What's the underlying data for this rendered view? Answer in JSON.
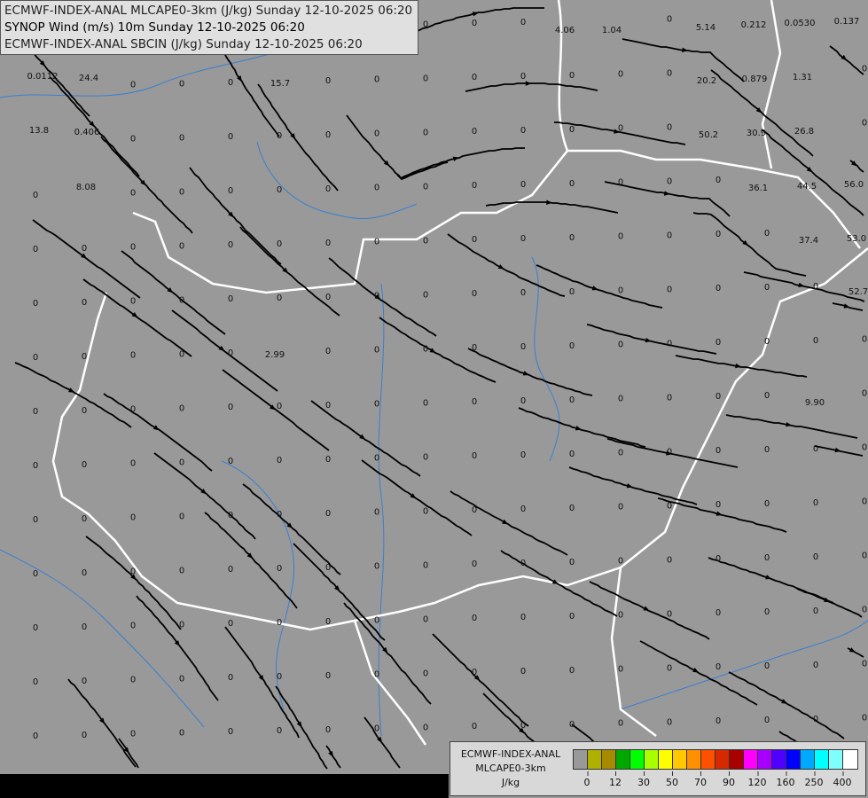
{
  "header": {
    "line1": "ECMWF-INDEX-ANAL MLCAPE0-3km (J/kg) Sunday 12-10-2025 06:20",
    "line2": "SYNOP Wind (m/s) 10m Sunday 12-10-2025 06:20",
    "line3": "ECMWF-INDEX-ANAL SBCIN (J/kg) Sunday 12-10-2025 06:20"
  },
  "legend": {
    "source": "ECMWF-INDEX-ANAL",
    "parameter": "MLCAPE0-3km",
    "unit": "J/kg",
    "colors": [
      "#999999",
      "#b0b000",
      "#a88a00",
      "#00a800",
      "#00ff00",
      "#a8ff00",
      "#ffff00",
      "#ffc800",
      "#ff9000",
      "#ff5000",
      "#d82800",
      "#a80000",
      "#ff00ff",
      "#a800ff",
      "#5000ff",
      "#0000ff",
      "#00a8ff",
      "#00ffff",
      "#80ffff",
      "#ffffff"
    ],
    "ticks": [
      "0",
      "12",
      "30",
      "50",
      "70",
      "90",
      "120",
      "160",
      "250",
      "400"
    ]
  },
  "map": {
    "background": "#999999",
    "border_color": "#ffffff",
    "river_color": "#3a7fd0",
    "streamline_color": "#000000",
    "zero_label": "0",
    "values": [
      "0.0112",
      "24.4",
      "15.7",
      "13.8",
      "0.406",
      "8.08",
      "4.06",
      "1.04",
      "5.14",
      "0.212",
      "0.0530",
      "0.137",
      "20.2",
      "0.879",
      "1.31",
      "50.2",
      "30.9",
      "26.8",
      "36.1",
      "44.5",
      "56.0",
      "37.4",
      "53.0",
      "52.7",
      "2.99",
      "9.90"
    ]
  }
}
